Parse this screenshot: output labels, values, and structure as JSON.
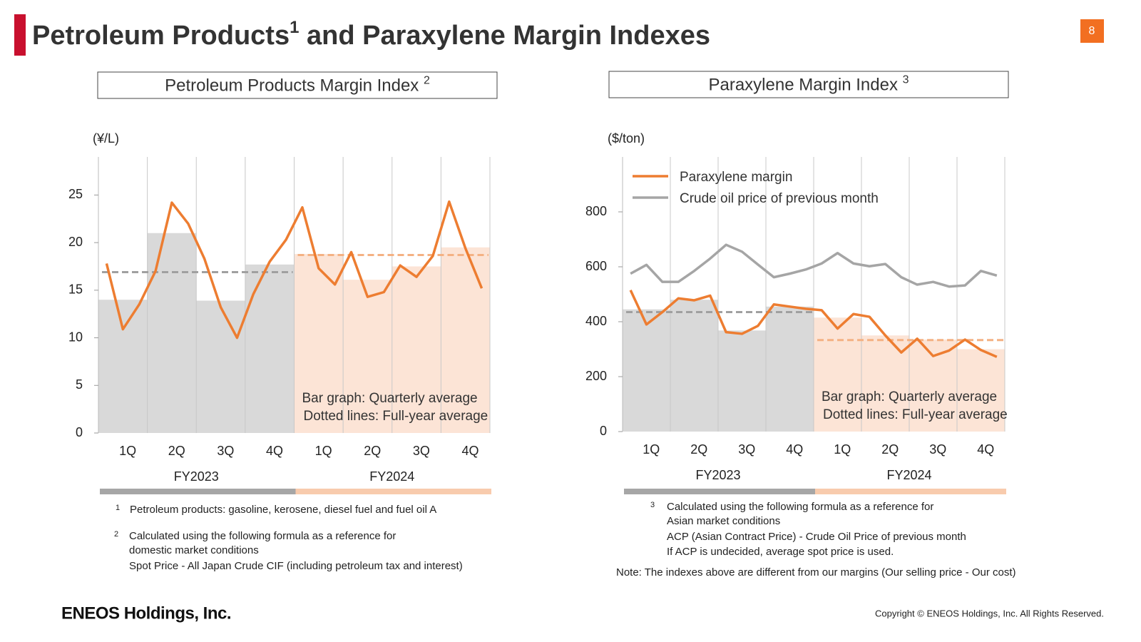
{
  "header": {
    "title": "Petroleum Products",
    "title_note": "1",
    "title_rest": " and Paraxylene Margin Indexes",
    "page": "8"
  },
  "chart_data": [
    {
      "type": "bar-line",
      "title": "Petroleum Products Margin Index",
      "title_note": "2",
      "unit": "(¥/L)",
      "ylim": [
        0,
        29
      ],
      "yticks": [
        0,
        5,
        10,
        15,
        20,
        25
      ],
      "groups": [
        {
          "label": "FY2023",
          "categories": [
            "1Q",
            "2Q",
            "3Q",
            "4Q"
          ],
          "bars": [
            14.0,
            21.0,
            13.9,
            17.7
          ],
          "color": "#d9d9d9",
          "average": 16.9,
          "average_color": "#a0a0a0",
          "band_color": "#a6a6a6"
        },
        {
          "label": "FY2024",
          "categories": [
            "1Q",
            "2Q",
            "3Q",
            "4Q"
          ],
          "bars": [
            18.8,
            16.1,
            17.5,
            19.5
          ],
          "color": "#fce4d6",
          "average": 18.7,
          "average_color": "#f4b183",
          "band_color": "#f8cbad"
        }
      ],
      "series": [
        {
          "color": "#ed7d31",
          "values": [
            17.8,
            10.9,
            13.5,
            17.0,
            24.2,
            22.0,
            18.3,
            13.2,
            10.0,
            14.6,
            18.0,
            20.3,
            23.7,
            17.3,
            15.6,
            19.0,
            14.3,
            14.8,
            17.6,
            16.4,
            18.6,
            24.3,
            19.4,
            15.2
          ]
        }
      ],
      "annotation": [
        "Bar graph: Quarterly average",
        "Dotted lines: Full-year average"
      ]
    },
    {
      "type": "bar-line",
      "title": "Paraxylene Margin Index",
      "title_note": "3",
      "unit": "($/ton)",
      "ylim": [
        0,
        1000
      ],
      "yticks": [
        0,
        200,
        400,
        600,
        800
      ],
      "legend": "upper left",
      "groups": [
        {
          "label": "FY2023",
          "categories": [
            "1Q",
            "2Q",
            "3Q",
            "4Q"
          ],
          "bars": [
            445,
            480,
            368,
            455
          ],
          "color": "#d9d9d9",
          "average": 435,
          "average_color": "#a0a0a0",
          "band_color": "#a6a6a6"
        },
        {
          "label": "FY2024",
          "categories": [
            "1Q",
            "2Q",
            "3Q",
            "4Q"
          ],
          "bars": [
            415,
            350,
            335,
            300
          ],
          "color": "#fce4d6",
          "average": 333,
          "average_color": "#f4b183",
          "band_color": "#f8cbad"
        }
      ],
      "series": [
        {
          "name": "Paraxylene margin",
          "color": "#ed7d31",
          "values": [
            515,
            390,
            435,
            485,
            478,
            495,
            362,
            356,
            385,
            463,
            455,
            447,
            442,
            375,
            428,
            418,
            350,
            288,
            338,
            275,
            295,
            335,
            297,
            272
          ]
        },
        {
          "name": "Crude oil price of previous month",
          "color": "#a5a5a5",
          "values": [
            575,
            607,
            545,
            545,
            585,
            630,
            680,
            655,
            608,
            562,
            575,
            590,
            612,
            650,
            612,
            602,
            610,
            562,
            535,
            545,
            528,
            532,
            585,
            568
          ]
        }
      ],
      "annotation": [
        "Bar graph: Quarterly average",
        "Dotted lines: Full-year average"
      ]
    }
  ],
  "footnotes": {
    "left": [
      {
        "mark": "1",
        "lines": [
          "Petroleum products: gasoline, kerosene, diesel fuel and fuel oil A"
        ]
      },
      {
        "mark": "2",
        "lines": [
          "Calculated using the following formula as a reference for",
          "domestic market conditions",
          "Spot Price - All Japan Crude CIF (including petroleum tax and interest)"
        ]
      }
    ],
    "right": [
      {
        "mark": "3",
        "lines": [
          "Calculated using the following formula as a reference for",
          "Asian market conditions",
          "ACP (Asian Contract Price) - Crude Oil Price of previous month",
          "If ACP is undecided, average spot price is used."
        ]
      }
    ],
    "note": "Note: The indexes above are different from our margins (Our selling price - Our cost)"
  },
  "footer": {
    "logo": "ENEOS Holdings, Inc.",
    "copyright": "Copyright © ENEOS Holdings, Inc. All Rights Reserved."
  }
}
